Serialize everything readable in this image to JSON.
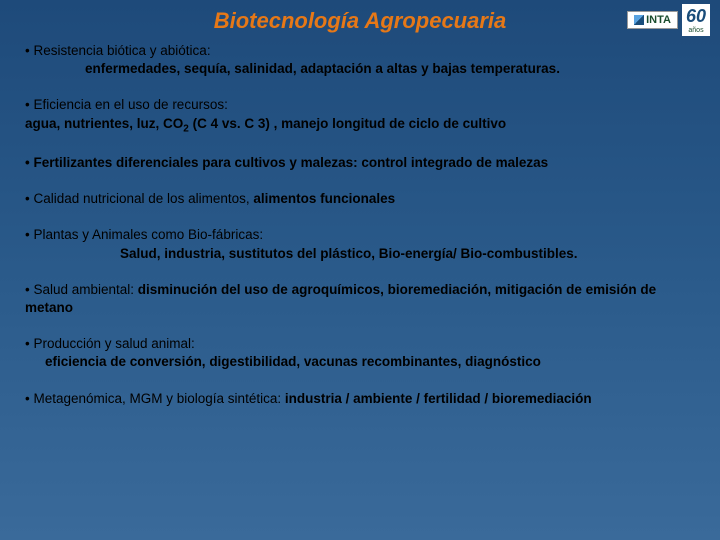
{
  "title": "Biotecnología Agropecuaria",
  "logo": {
    "brand": "INTA",
    "sixty": "60",
    "years": "años"
  },
  "bullets": [
    {
      "intro": "• Resistencia biótica y abiótica:",
      "detail": "enfermedades, sequía, salinidad, adaptación a altas y bajas temperaturas.",
      "detail_indent": "60px"
    },
    {
      "intro": "• Eficiencia en el uso de recursos:",
      "detail_prefix": "agua, nutrientes, luz, CO",
      "detail_sub": "2",
      "detail_suffix": "  (C 4 vs. C 3) , manejo longitud de ciclo de cultivo",
      "detail_indent": "0px"
    },
    {
      "intro": "•    Fertilizantes diferenciales para cultivos y malezas: control integrado de malezas",
      "intro_bold": true
    },
    {
      "intro_prefix": "• Calidad nutricional de los alimentos, ",
      "intro_bold_part": "alimentos funcionales"
    },
    {
      "intro": "• Plantas y Animales como Bio-fábricas:",
      "detail": "Salud, industria, sustitutos del plástico, Bio-energía/ Bio-combustibles.",
      "detail_indent": "95px"
    },
    {
      "intro_prefix": "• Salud ambiental: ",
      "intro_bold_part": "disminución del uso de agroquímicos, bioremediación, mitigación de emisión de metano"
    },
    {
      "intro": "• Producción y salud animal:",
      "detail": "eficiencia de conversión, digestibilidad, vacunas recombinantes, diagnóstico",
      "detail_indent": "20px"
    },
    {
      "intro_prefix": "• Metagenómica, MGM y biología sintética: ",
      "intro_bold_part": "industria / ambiente / fertilidad / bioremediación"
    }
  ]
}
